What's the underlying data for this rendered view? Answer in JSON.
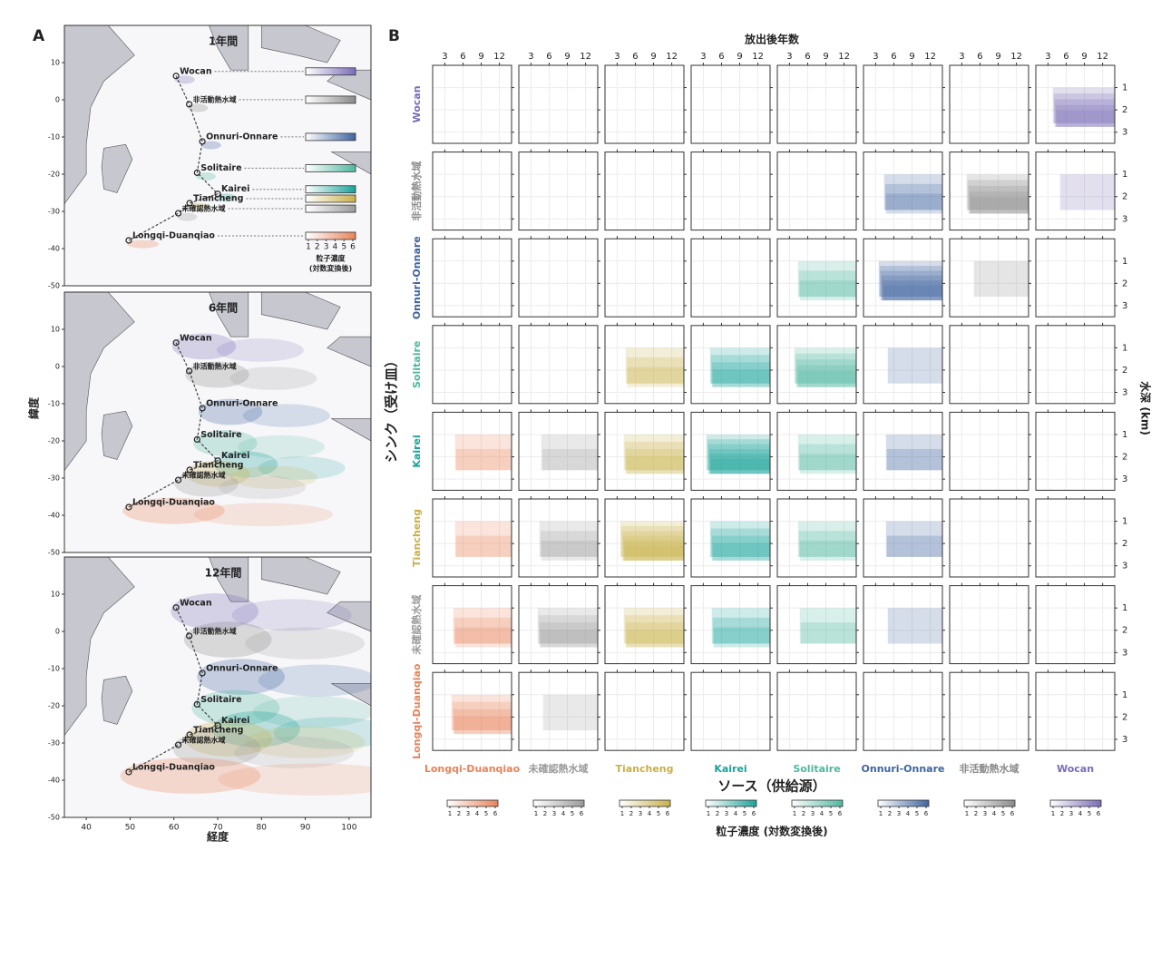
{
  "panel_a": {
    "letter": "A",
    "x_label": "経度",
    "y_label": "緯度",
    "xlim": [
      35,
      105
    ],
    "ylim": [
      -50,
      20
    ],
    "xticks": [
      40,
      50,
      60,
      70,
      80,
      90,
      100
    ],
    "yticks": [
      10,
      0,
      -10,
      -20,
      -30,
      -40,
      -50
    ],
    "maps": [
      {
        "title": "1年間"
      },
      {
        "title": "6年間"
      },
      {
        "title": "12年間"
      }
    ],
    "sites": [
      {
        "name": "Wocan",
        "lon": 60.5,
        "lat": 6.4,
        "color": "#7a6cb8"
      },
      {
        "name": "非活動熱水域",
        "lon": 63.5,
        "lat": -1.2,
        "color": "#8a8a8a"
      },
      {
        "name": "Onnuri-Onnare",
        "lon": 66.5,
        "lat": -11.2,
        "color": "#3f64a0"
      },
      {
        "name": "Solitaire",
        "lon": 65.3,
        "lat": -19.6,
        "color": "#4fb8a0"
      },
      {
        "name": "Kairei",
        "lon": 70.0,
        "lat": -25.3,
        "color": "#1aa39a"
      },
      {
        "name": "Tiancheng",
        "lon": 63.6,
        "lat": -27.8,
        "color": "#c9b04a"
      },
      {
        "name": "未確認熱水域",
        "lon": 61.0,
        "lat": -30.5,
        "color": "#9a9a9a"
      },
      {
        "name": "Longqi-Duanqiao",
        "lon": 49.7,
        "lat": -37.8,
        "color": "#e8835a"
      }
    ],
    "colorbar_ticks": [
      1,
      2,
      3,
      4,
      5,
      6
    ],
    "colorbar_label": "粒子濃度",
    "colorbar_sublabel": "(対数変換後)"
  },
  "panel_b": {
    "letter": "B",
    "top_label": "放出後年数",
    "right_label": "水深 (km)",
    "row_axis_label": "シンク（受け皿）",
    "col_axis_label": "ソース（供給源）",
    "xlim": [
      1,
      14
    ],
    "xticks": [
      3,
      6,
      9,
      12
    ],
    "ylim": [
      0,
      3.5
    ],
    "yticks": [
      1,
      2,
      3
    ],
    "columns": [
      {
        "name": "Longqi-Duanqiao",
        "color": "#e8835a"
      },
      {
        "name": "未確認熱水域",
        "color": "#9a9a9a"
      },
      {
        "name": "Tiancheng",
        "color": "#c9b04a"
      },
      {
        "name": "Kairei",
        "color": "#1aa39a"
      },
      {
        "name": "Solitaire",
        "color": "#4fb8a0"
      },
      {
        "name": "Onnuri-Onnare",
        "color": "#3f64a0"
      },
      {
        "name": "非活動熱水域",
        "color": "#8a8a8a"
      },
      {
        "name": "Wocan",
        "color": "#7a6cb8"
      }
    ],
    "rows": [
      {
        "name": "Wocan",
        "color": "#7a6cb8"
      },
      {
        "name": "非活動熱水域",
        "color": "#8a8a8a"
      },
      {
        "name": "Onnuri-Onnare",
        "color": "#3f64a0"
      },
      {
        "name": "Solitaire",
        "color": "#4fb8a0"
      },
      {
        "name": "Kairei",
        "color": "#1aa39a"
      },
      {
        "name": "Tiancheng",
        "color": "#c9b04a"
      },
      {
        "name": "未確認熱水域",
        "color": "#9a9a9a"
      },
      {
        "name": "Longqi-Duanqiao",
        "color": "#e8835a"
      }
    ],
    "levels": [
      [
        0,
        0,
        0,
        0,
        0,
        0,
        0,
        5
      ],
      [
        0,
        0,
        0,
        0,
        0,
        3,
        5,
        1
      ],
      [
        0,
        0,
        0,
        0,
        3,
        6,
        1,
        0
      ],
      [
        0,
        0,
        3,
        4,
        5,
        1,
        0,
        0
      ],
      [
        2,
        2,
        4,
        6,
        3,
        2,
        0,
        0
      ],
      [
        2,
        3,
        6,
        4,
        3,
        2,
        0,
        0
      ],
      [
        3,
        4,
        4,
        3,
        2,
        1,
        0,
        0
      ],
      [
        4,
        1,
        0,
        0,
        0,
        0,
        0,
        0
      ]
    ],
    "colorbar_ticks": [
      1,
      2,
      3,
      4,
      5,
      6
    ],
    "colorbar_label": "粒子濃度 (対数変換後)"
  }
}
